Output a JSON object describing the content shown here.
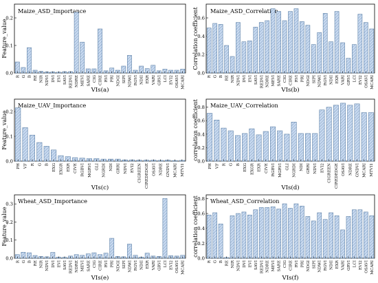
{
  "colors": {
    "bar_fill": "#c9daf0",
    "bar_edge": "#5b7fa6",
    "hatch": "#7d9cc0"
  },
  "chart_data": [
    {
      "type": "bar",
      "title": "Maize_ASD_Importance",
      "xlabel": "VIs(a)",
      "ylabel": "Feature_value",
      "ylim": [
        0.0,
        0.25
      ],
      "yticks": [
        0.0,
        0.1,
        0.2
      ],
      "categories": [
        "R",
        "G",
        "B",
        "RE",
        "NIR",
        "NDVI",
        "DVI",
        "EVI",
        "SAVI",
        "REDVI",
        "NDRE",
        "MEVI",
        "SARE",
        "CIG",
        "CIRE",
        "RVI",
        "PRI",
        "NDGI",
        "SIPI",
        "NDWI",
        "RGVI",
        "NDII",
        "EXR",
        "VARI",
        "GRVI",
        "LCI",
        "EVI2",
        "OSAVI",
        "MCARI"
      ],
      "values": [
        0.04,
        0.02,
        0.092,
        0.01,
        0.006,
        0.004,
        0.004,
        0.003,
        0.005,
        0.005,
        0.22,
        0.112,
        0.015,
        0.015,
        0.16,
        0.008,
        0.018,
        0.01,
        0.025,
        0.064,
        0.01,
        0.025,
        0.016,
        0.028,
        0.008,
        0.014,
        0.01,
        0.01,
        0.014
      ]
    },
    {
      "type": "bar",
      "title": "Maize_ASD_Correlation",
      "xlabel": "VIs(b)",
      "ylabel": "Correlation coefficient",
      "ylim": [
        0.0,
        0.75
      ],
      "yticks": [
        0.0,
        0.2,
        0.4,
        0.6
      ],
      "categories": [
        "R",
        "G",
        "B",
        "RE",
        "NIR",
        "NDVI",
        "DVI",
        "EVI",
        "SAVI",
        "REDVI",
        "NDRE",
        "MEVI",
        "SARE",
        "CIG",
        "CIRE",
        "RVI",
        "PRI",
        "NDGI",
        "SIPI",
        "NDWI",
        "RGVI",
        "NDII",
        "EXR",
        "VARI",
        "GRVI",
        "LCI",
        "EVI2",
        "OSAVI",
        "MCARI"
      ],
      "values": [
        0.49,
        0.54,
        0.53,
        0.3,
        0.18,
        0.55,
        0.34,
        0.35,
        0.5,
        0.55,
        0.57,
        0.7,
        0.67,
        0.57,
        0.67,
        0.7,
        0.56,
        0.52,
        0.31,
        0.44,
        0.65,
        0.34,
        0.67,
        0.33,
        0.16,
        0.31,
        0.64,
        0.55,
        0.48
      ]
    },
    {
      "type": "bar",
      "title": "Maize_UAV_Importance",
      "xlabel": "VIs(c)",
      "ylabel": "Feature_value",
      "ylim": [
        0.0,
        0.25
      ],
      "yticks": [
        0.0,
        0.1,
        0.2
      ],
      "categories": [
        "PH",
        "VF",
        "R",
        "G",
        "B",
        "EXG",
        "EXGR",
        "EXR",
        "CIVE",
        "RGBVI",
        "MGRVI",
        "GLI",
        "NGRDI",
        "NDI",
        "GRRI",
        "NDVI",
        "EVI2",
        "CIGREEN",
        "CIREDEDGE",
        "OSAVI",
        "NDRE",
        "GNDVI",
        "MCARI",
        "MTVI1"
      ],
      "values": [
        0.215,
        0.135,
        0.105,
        0.075,
        0.06,
        0.045,
        0.022,
        0.018,
        0.014,
        0.012,
        0.01,
        0.01,
        0.008,
        0.008,
        0.008,
        0.005,
        0.005,
        0.004,
        0.004,
        0.004,
        0.003,
        0.004,
        0.002,
        0.003
      ]
    },
    {
      "type": "bar",
      "title": "Maize_UAV_Correlation",
      "xlabel": "VIs(d)",
      "ylabel": "correlation coefficient",
      "ylim": [
        0.0,
        0.92
      ],
      "yticks": [
        0.0,
        0.2,
        0.4,
        0.6,
        0.8
      ],
      "categories": [
        "PH",
        "VF",
        "R",
        "G",
        "B",
        "EXG",
        "EXGR",
        "EXR",
        "CIVE",
        "RGBVI",
        "MGRVI",
        "GLI",
        "NGRDI",
        "NDI",
        "GRRI",
        "NDVI",
        "EVI2",
        "CIGREEN",
        "CIREDEDGE",
        "OSAVI",
        "NDRE",
        "GNDVI",
        "MCARI",
        "MTVI1"
      ],
      "values": [
        0.71,
        0.61,
        0.49,
        0.45,
        0.38,
        0.41,
        0.48,
        0.39,
        0.44,
        0.51,
        0.45,
        0.4,
        0.58,
        0.41,
        0.41,
        0.41,
        0.76,
        0.8,
        0.83,
        0.86,
        0.83,
        0.85,
        0.72,
        0.72
      ]
    },
    {
      "type": "bar",
      "title": "Wheat_ASD_Importance",
      "xlabel": "VIs(e)",
      "ylabel": "Feature_value",
      "ylim": [
        0.0,
        0.35
      ],
      "yticks": [
        0.0,
        0.1,
        0.2,
        0.3
      ],
      "categories": [
        "R",
        "G",
        "B",
        "RE",
        "NIR",
        "NDVI",
        "DVI",
        "EVI",
        "SAVI",
        "REDVI",
        "NDRE",
        "MEVI",
        "SARE",
        "CIG",
        "CIRE",
        "RVI",
        "PRI",
        "NDGI",
        "SIPI",
        "NDWI",
        "RGVI",
        "NDII",
        "EXR",
        "VARI",
        "GRVI",
        "LCI",
        "EVI2",
        "OSAVI",
        "MCARI"
      ],
      "values": [
        0.02,
        0.033,
        0.03,
        0.015,
        0.01,
        0.008,
        0.032,
        0.006,
        0.005,
        0.012,
        0.02,
        0.016,
        0.024,
        0.03,
        0.02,
        0.028,
        0.11,
        0.01,
        0.008,
        0.078,
        0.016,
        0.006,
        0.028,
        0.012,
        0.01,
        0.33,
        0.014,
        0.012,
        0.016
      ]
    },
    {
      "type": "bar",
      "title": "Wheat_ASD_Correlation",
      "xlabel": "VIs(f)",
      "ylabel": "correlation coefficient",
      "ylim": [
        0.0,
        0.85
      ],
      "yticks": [
        0.0,
        0.2,
        0.4,
        0.6,
        0.8
      ],
      "categories": [
        "R",
        "G",
        "B",
        "RE",
        "NIR",
        "NDVI",
        "DVI",
        "EVI",
        "SAVI",
        "REDVI",
        "NDRE",
        "MEVI",
        "SARE",
        "CIG",
        "CIRE",
        "RVI",
        "PRI",
        "NDGI",
        "SIPI",
        "NDWI",
        "RGVI",
        "NDII",
        "EXR",
        "VARI",
        "GRVI",
        "LCI",
        "EVI2",
        "OSAVI",
        "MCARI"
      ],
      "values": [
        0.58,
        0.61,
        0.46,
        0.01,
        0.57,
        0.6,
        0.62,
        0.58,
        0.65,
        0.68,
        0.68,
        0.69,
        0.66,
        0.73,
        0.67,
        0.73,
        0.7,
        0.56,
        0.5,
        0.61,
        0.52,
        0.61,
        0.57,
        0.38,
        0.56,
        0.65,
        0.65,
        0.62,
        0.57
      ]
    }
  ]
}
